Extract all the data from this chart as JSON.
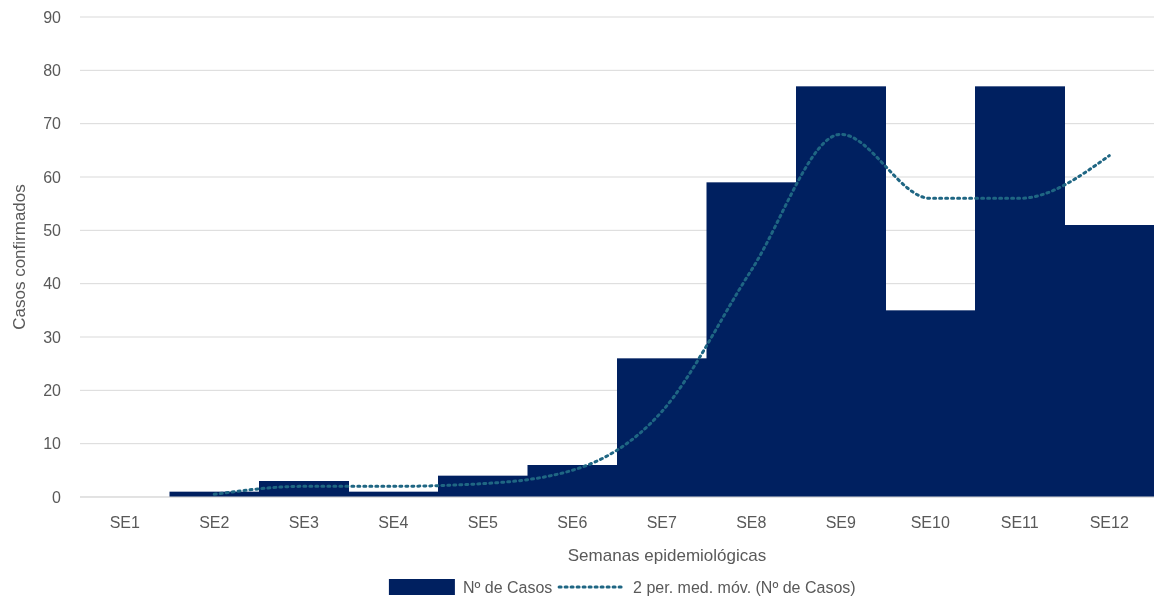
{
  "chart_data": {
    "type": "bar",
    "xlabel": "Semanas epidemiológicas",
    "ylabel": "Casos confirmados",
    "categories": [
      "SE1",
      "SE2",
      "SE3",
      "SE4",
      "SE5",
      "SE6",
      "SE7",
      "SE8",
      "SE9",
      "SE10",
      "SE11",
      "SE12"
    ],
    "series": [
      {
        "name": "Nº de Casos",
        "color": "#002060",
        "values": [
          0,
          1,
          3,
          1,
          4,
          6,
          26,
          59,
          77,
          35,
          77,
          51
        ]
      },
      {
        "name": "2 per. med. móv. (Nº de Casos)",
        "type": "line",
        "color": "#1f6683",
        "line_style": "dotted",
        "values": [
          null,
          0.5,
          2,
          2,
          2.5,
          5,
          16,
          42.5,
          68,
          56,
          56,
          64
        ]
      }
    ],
    "ylim": [
      0,
      90
    ],
    "yticks": [
      0,
      10,
      20,
      30,
      40,
      50,
      60,
      70,
      80,
      90
    ],
    "grid": "y",
    "legend": "bottom"
  }
}
